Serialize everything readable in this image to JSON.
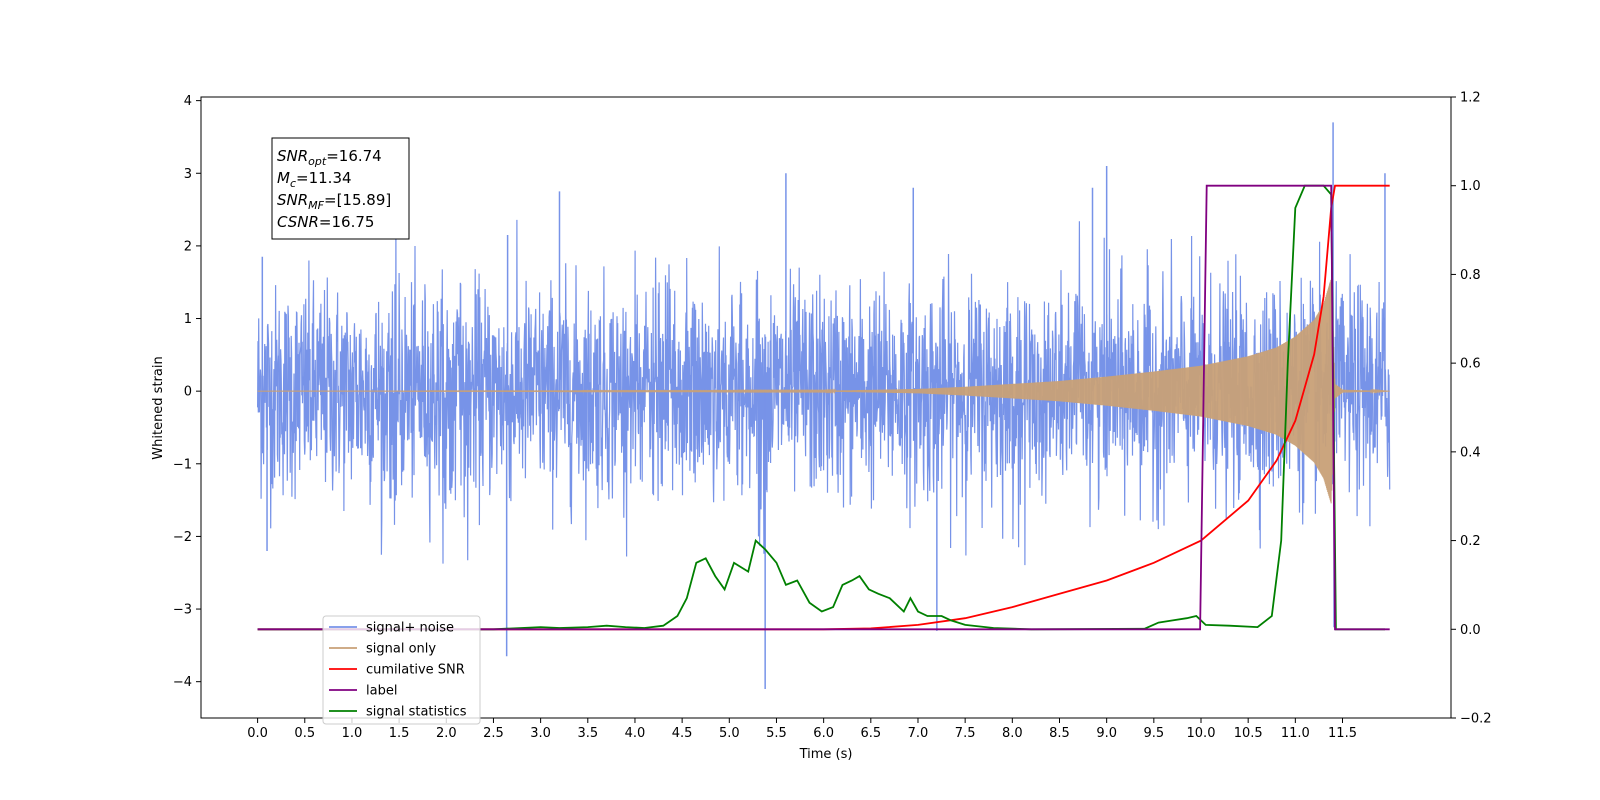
{
  "chart_data": {
    "type": "line",
    "title": "",
    "xlabel": "Time (s)",
    "ylabel": "Whitened strain",
    "y2label": "",
    "xlim": [
      -0.6,
      12.65
    ],
    "ylim": [
      -4.5,
      4.05
    ],
    "y2lim": [
      -0.2,
      1.2
    ],
    "xticks": [
      0.0,
      0.5,
      1.0,
      1.5,
      2.0,
      2.5,
      3.0,
      3.5,
      4.0,
      4.5,
      5.0,
      5.5,
      6.0,
      6.5,
      7.0,
      7.5,
      8.0,
      8.5,
      9.0,
      9.5,
      10.0,
      10.5,
      11.0,
      11.5
    ],
    "xtick_labels": [
      "0.0",
      "0.5",
      "1.0",
      "1.5",
      "2.0",
      "2.5",
      "3.0",
      "3.5",
      "4.0",
      "4.5",
      "5.0",
      "5.5",
      "6.0",
      "6.5",
      "7.0",
      "7.5",
      "8.0",
      "8.5",
      "9.0",
      "9.5",
      "10.0",
      "10.5",
      "11.0",
      "11.5"
    ],
    "yticks": [
      -4,
      -3,
      -2,
      -1,
      0,
      1,
      2,
      3,
      4
    ],
    "ytick_labels": [
      "−4",
      "−3",
      "−2",
      "−1",
      "0",
      "1",
      "2",
      "3",
      "4"
    ],
    "y2ticks": [
      -0.2,
      0.0,
      0.2,
      0.4,
      0.6,
      0.8,
      1.0,
      1.2
    ],
    "y2tick_labels": [
      "−0.2",
      "0.0",
      "0.2",
      "0.4",
      "0.6",
      "0.8",
      "1.0",
      "1.2"
    ],
    "grid": false,
    "legend_position": "bottom-left",
    "noise_band": {
      "x_start": 0.0,
      "x_end": 12.0,
      "typical_range": [
        -1.5,
        1.5
      ],
      "extremes": [
        -4.1,
        3.7
      ]
    },
    "series": [
      {
        "name": "signal+ noise",
        "axis": "left",
        "color": "#7793e8",
        "spikes": [
          [
            0.05,
            1.85
          ],
          [
            0.1,
            -2.2
          ],
          [
            2.64,
            -3.65
          ],
          [
            2.65,
            2.15
          ],
          [
            3.2,
            2.75
          ],
          [
            5.38,
            -4.1
          ],
          [
            5.6,
            3.0
          ],
          [
            6.95,
            2.8
          ],
          [
            7.2,
            -3.3
          ],
          [
            8.85,
            2.8
          ],
          [
            9.0,
            3.1
          ],
          [
            11.4,
            3.7
          ],
          [
            11.41,
            -3.25
          ],
          [
            11.95,
            3.0
          ]
        ]
      },
      {
        "name": "signal only",
        "axis": "left",
        "color": "#c8a077",
        "envelope": [
          [
            0.0,
            0.0
          ],
          [
            6.0,
            0.005
          ],
          [
            7.0,
            0.03
          ],
          [
            7.5,
            0.06
          ],
          [
            8.0,
            0.1
          ],
          [
            8.5,
            0.14
          ],
          [
            9.0,
            0.2
          ],
          [
            9.5,
            0.27
          ],
          [
            10.0,
            0.35
          ],
          [
            10.5,
            0.48
          ],
          [
            10.8,
            0.6
          ],
          [
            11.0,
            0.75
          ],
          [
            11.2,
            0.98
          ],
          [
            11.3,
            1.2
          ],
          [
            11.38,
            1.55
          ],
          [
            11.42,
            0.1
          ],
          [
            11.5,
            0.02
          ],
          [
            12.0,
            0.0
          ]
        ]
      },
      {
        "name": "cumilative SNR",
        "axis": "right",
        "color": "#ff0000",
        "points": [
          [
            0.0,
            0.0
          ],
          [
            6.0,
            0.0
          ],
          [
            6.5,
            0.002
          ],
          [
            7.0,
            0.01
          ],
          [
            7.5,
            0.025
          ],
          [
            8.0,
            0.05
          ],
          [
            8.5,
            0.08
          ],
          [
            9.0,
            0.11
          ],
          [
            9.5,
            0.15
          ],
          [
            10.0,
            0.2
          ],
          [
            10.5,
            0.29
          ],
          [
            10.8,
            0.38
          ],
          [
            11.0,
            0.47
          ],
          [
            11.2,
            0.62
          ],
          [
            11.3,
            0.75
          ],
          [
            11.38,
            0.95
          ],
          [
            11.42,
            1.0
          ],
          [
            12.0,
            1.0
          ]
        ]
      },
      {
        "name": "label",
        "axis": "right",
        "color": "#800080",
        "points": [
          [
            0.0,
            0.0
          ],
          [
            9.99,
            0.0
          ],
          [
            10.06,
            1.0
          ],
          [
            11.38,
            1.0
          ],
          [
            11.42,
            0.0
          ],
          [
            12.0,
            0.0
          ]
        ]
      },
      {
        "name": "signal statistics",
        "axis": "right",
        "color": "#008000",
        "points": [
          [
            0.0,
            0.0
          ],
          [
            2.5,
            0.0
          ],
          [
            2.8,
            0.003
          ],
          [
            3.0,
            0.005
          ],
          [
            3.2,
            0.003
          ],
          [
            3.5,
            0.005
          ],
          [
            3.7,
            0.008
          ],
          [
            3.9,
            0.005
          ],
          [
            4.1,
            0.003
          ],
          [
            4.3,
            0.008
          ],
          [
            4.45,
            0.03
          ],
          [
            4.55,
            0.07
          ],
          [
            4.65,
            0.15
          ],
          [
            4.75,
            0.16
          ],
          [
            4.85,
            0.12
          ],
          [
            4.95,
            0.09
          ],
          [
            5.05,
            0.15
          ],
          [
            5.2,
            0.13
          ],
          [
            5.28,
            0.2
          ],
          [
            5.38,
            0.18
          ],
          [
            5.5,
            0.15
          ],
          [
            5.6,
            0.1
          ],
          [
            5.72,
            0.11
          ],
          [
            5.85,
            0.06
          ],
          [
            5.98,
            0.04
          ],
          [
            6.1,
            0.05
          ],
          [
            6.2,
            0.1
          ],
          [
            6.3,
            0.11
          ],
          [
            6.38,
            0.12
          ],
          [
            6.48,
            0.09
          ],
          [
            6.58,
            0.08
          ],
          [
            6.7,
            0.07
          ],
          [
            6.85,
            0.04
          ],
          [
            6.92,
            0.07
          ],
          [
            7.0,
            0.04
          ],
          [
            7.1,
            0.03
          ],
          [
            7.25,
            0.03
          ],
          [
            7.35,
            0.02
          ],
          [
            7.5,
            0.01
          ],
          [
            7.8,
            0.003
          ],
          [
            8.2,
            0.0
          ],
          [
            9.4,
            0.001
          ],
          [
            9.55,
            0.015
          ],
          [
            9.7,
            0.02
          ],
          [
            9.85,
            0.025
          ],
          [
            9.95,
            0.03
          ],
          [
            10.05,
            0.01
          ],
          [
            10.3,
            0.008
          ],
          [
            10.6,
            0.005
          ],
          [
            10.75,
            0.03
          ],
          [
            10.85,
            0.2
          ],
          [
            10.92,
            0.6
          ],
          [
            11.0,
            0.95
          ],
          [
            11.1,
            1.0
          ],
          [
            11.3,
            1.0
          ],
          [
            11.38,
            0.98
          ],
          [
            11.43,
            0.0
          ],
          [
            11.95,
            0.0
          ]
        ]
      }
    ],
    "annotation_lines": [
      "=16.74",
      "=11.34",
      "=[15.89]",
      "=16.75"
    ],
    "annotation_vars": [
      {
        "base": "SNR",
        "sub": "opt"
      },
      {
        "base": "M",
        "sub": "c"
      },
      {
        "base": "SNR",
        "sub": "MF"
      },
      {
        "base": "CSNR",
        "sub": ""
      }
    ]
  }
}
